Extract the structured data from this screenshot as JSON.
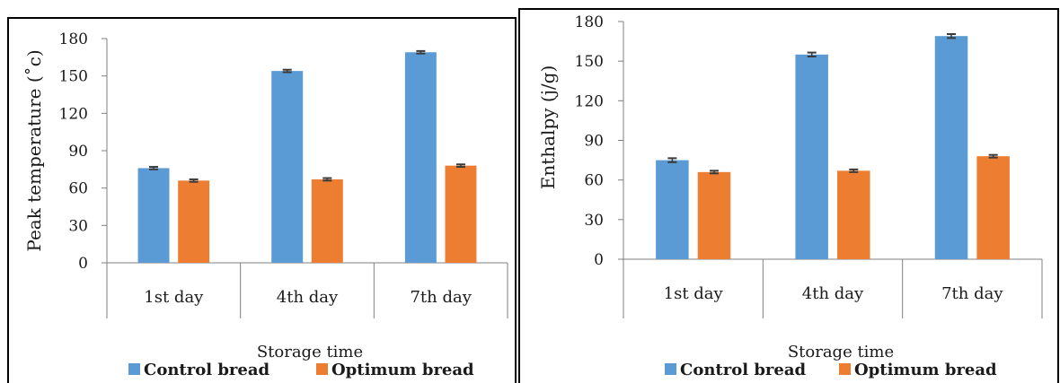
{
  "chart_data": [
    {
      "type": "bar",
      "title": "",
      "xlabel": "Storage time",
      "ylabel": "Peak temperature (˚c)",
      "categories": [
        "1st day",
        "4th day",
        "7th day"
      ],
      "series": [
        {
          "name": "Control bread",
          "values": [
            76,
            154,
            169
          ],
          "errors": [
            1,
            1,
            1
          ],
          "color": "#5b9bd5"
        },
        {
          "name": "Optimum bread",
          "values": [
            66,
            67,
            78
          ],
          "errors": [
            1,
            1,
            1
          ],
          "color": "#ed7d31"
        }
      ],
      "ylim": [
        0,
        180
      ],
      "yticks": [
        0,
        30,
        60,
        90,
        120,
        150,
        180
      ],
      "grid": false,
      "legend": "bottom"
    },
    {
      "type": "bar",
      "title": "",
      "xlabel": "Storage time",
      "ylabel": "Enthalpy (j/g)",
      "categories": [
        "1st day",
        "4th day",
        "7th day"
      ],
      "series": [
        {
          "name": "Control bread",
          "values": [
            75,
            155,
            169
          ],
          "errors": [
            1.5,
            1.5,
            1.5
          ],
          "color": "#5b9bd5"
        },
        {
          "name": "Optimum bread",
          "values": [
            66,
            67,
            78
          ],
          "errors": [
            1,
            1,
            1
          ],
          "color": "#ed7d31"
        }
      ],
      "ylim": [
        0,
        180
      ],
      "yticks": [
        0,
        30,
        60,
        90,
        120,
        150,
        180
      ],
      "grid": false,
      "legend": "bottom"
    }
  ]
}
